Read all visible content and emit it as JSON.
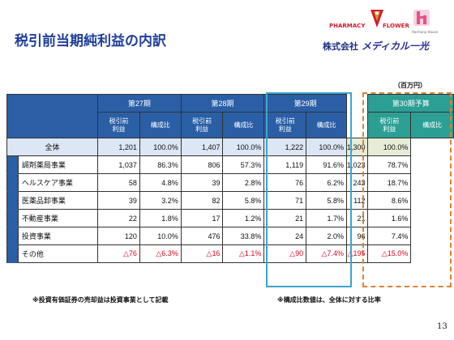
{
  "title": "税引前当期純利益の内訳",
  "logo": {
    "pharmacy": "PHARMACY",
    "flower": "FLOWER",
    "harmony": "Harmony House",
    "company_prefix": "株式会社",
    "company_brand": "メディカル一光",
    "colors": {
      "red": "#d8192b",
      "navy": "#1c2f86",
      "pink": "#e8508a",
      "gold": "#c9a227"
    }
  },
  "unit": "（百万円）",
  "table": {
    "periods": [
      "第27期",
      "第28期",
      "第29期",
      "第30期予算"
    ],
    "col_profit": "税引前\n利益",
    "col_ratio": "構成比",
    "rows": [
      {
        "name": "全体",
        "values": [
          "1,201",
          "100.0%",
          "1,407",
          "100.0%",
          "1,222",
          "100.0%",
          "1,300",
          "100.0%"
        ]
      },
      {
        "name": "調剤薬局事業",
        "values": [
          "1,037",
          "86.3%",
          "806",
          "57.3%",
          "1,119",
          "91.6%",
          "1,023",
          "78.7%"
        ]
      },
      {
        "name": "ヘルスケア事業",
        "values": [
          "58",
          "4.8%",
          "39",
          "2.8%",
          "76",
          "6.2%",
          "243",
          "18.7%"
        ]
      },
      {
        "name": "医薬品卸事業",
        "values": [
          "39",
          "3.2%",
          "82",
          "5.8%",
          "71",
          "5.8%",
          "112",
          "8.6%"
        ]
      },
      {
        "name": "不動産事業",
        "values": [
          "22",
          "1.8%",
          "17",
          "1.2%",
          "21",
          "1.7%",
          "21",
          "1.6%"
        ]
      },
      {
        "name": "投資事業",
        "values": [
          "120",
          "10.0%",
          "476",
          "33.8%",
          "24",
          "2.0%",
          "96",
          "7.4%"
        ]
      },
      {
        "name": "その他",
        "values": [
          "△76",
          "△6.3%",
          "△16",
          "△1.1%",
          "△90",
          "△7.4%",
          "△195",
          "△15.0%"
        ]
      }
    ],
    "colors": {
      "header_blue": "#2a5fa6",
      "header_teal": "#2c9f95",
      "total_row": "#dce6f4",
      "negative": "#e0001b",
      "highlight_29": "#3ba5cf",
      "highlight_30": "#e08030"
    }
  },
  "notes": [
    "※投資有価証券の売却益は投資事業として記載",
    "※構成比数値は、全体に対する比率"
  ],
  "page_number": "13"
}
